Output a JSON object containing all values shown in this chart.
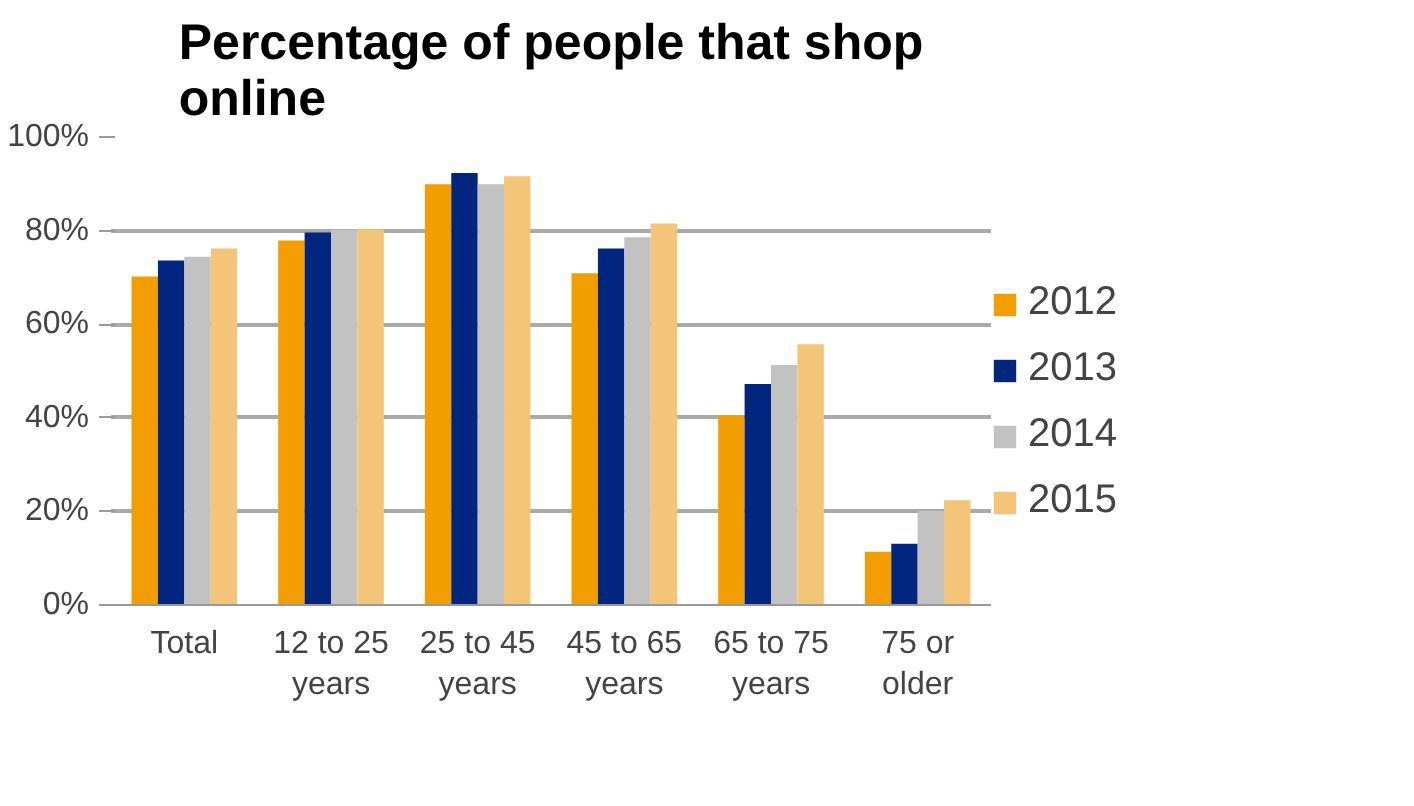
{
  "chart_data": {
    "type": "bar",
    "title": "Percentage of people that shop online",
    "categories": [
      "Total",
      "12 to 25 years",
      "25 to 45 years",
      "45 to 65 years",
      "65 to 75 years",
      "75 or older"
    ],
    "series": [
      {
        "name": "2012",
        "color": "#f29d00",
        "values": [
          70.2,
          77.9,
          89.9,
          70.9,
          40.5,
          11.4
        ]
      },
      {
        "name": "2013",
        "color": "#00267f",
        "values": [
          73.6,
          79.6,
          92.3,
          76.2,
          47.2,
          13.1
        ]
      },
      {
        "name": "2014",
        "color": "#c2c2c2",
        "values": [
          74.4,
          80.2,
          89.9,
          78.6,
          51.3,
          20.1
        ]
      },
      {
        "name": "2015",
        "color": "#f4c478",
        "values": [
          76.2,
          80.3,
          91.6,
          81.5,
          55.7,
          22.4
        ]
      }
    ],
    "ylim": [
      0,
      100
    ],
    "yticks": [
      {
        "value": 0,
        "label": "0%"
      },
      {
        "value": 20,
        "label": "20%"
      },
      {
        "value": 40,
        "label": "40%"
      },
      {
        "value": 60,
        "label": "60%"
      },
      {
        "value": 80,
        "label": "80%"
      },
      {
        "value": 100,
        "label": "100%"
      }
    ],
    "grid": "y",
    "legend": "right"
  }
}
